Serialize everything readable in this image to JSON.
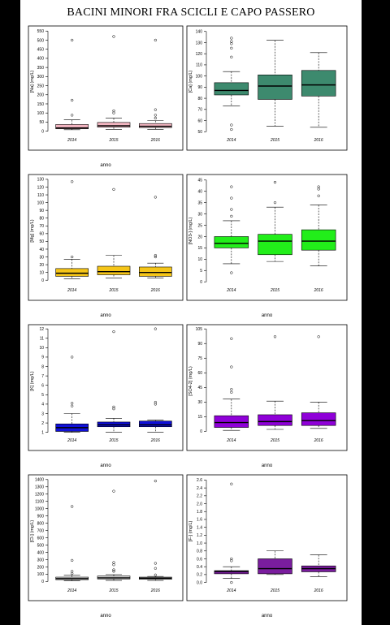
{
  "page": {
    "title": "BACINI MINORI FRA SCICLI E CAPO PASSERO"
  },
  "chart_data": [
    {
      "type": "box",
      "ylabel": "[Na] (mg/L)",
      "xlabel": "anno",
      "categories": [
        "2014",
        "2015",
        "2016"
      ],
      "yticks": [
        0,
        50,
        100,
        150,
        200,
        250,
        300,
        350,
        400,
        450,
        500,
        550
      ],
      "ylim": [
        -15,
        560
      ],
      "color": "#f4b6c2",
      "boxes": [
        {
          "lo": 8,
          "q1": 13,
          "med": 18,
          "q3": 37,
          "hi": 62,
          "out": [
            88,
            170,
            500
          ]
        },
        {
          "lo": 10,
          "q1": 22,
          "med": 30,
          "q3": 48,
          "hi": 72,
          "out": [
            100,
            112,
            520
          ]
        },
        {
          "lo": 10,
          "q1": 20,
          "med": 27,
          "q3": 42,
          "hi": 58,
          "out": [
            72,
            88,
            118,
            500
          ]
        }
      ]
    },
    {
      "type": "box",
      "ylabel": "[Ca] (mg/L)",
      "xlabel": "",
      "categories": [
        "2014",
        "2015",
        "2016"
      ],
      "yticks": [
        50,
        60,
        70,
        80,
        90,
        100,
        110,
        120,
        130,
        140
      ],
      "ylim": [
        48,
        142
      ],
      "color": "#3d8a6e",
      "boxes": [
        {
          "lo": 73,
          "q1": 83,
          "med": 87,
          "q3": 94,
          "hi": 104,
          "out": [
            52,
            56,
            117,
            125,
            129,
            131,
            134
          ]
        },
        {
          "lo": 55,
          "q1": 79,
          "med": 91,
          "q3": 101,
          "hi": 132,
          "out": []
        },
        {
          "lo": 54,
          "q1": 82,
          "med": 92,
          "q3": 105,
          "hi": 121,
          "out": []
        }
      ]
    },
    {
      "type": "box",
      "ylabel": "[Mg] (mg/L)",
      "xlabel": "anno",
      "categories": [
        "2014",
        "2015",
        "2016"
      ],
      "yticks": [
        0,
        10,
        20,
        30,
        40,
        50,
        60,
        70,
        80,
        90,
        100,
        110,
        120,
        130
      ],
      "ylim": [
        -5,
        132
      ],
      "color": "#f5c518",
      "boxes": [
        {
          "lo": 2,
          "q1": 5,
          "med": 9,
          "q3": 15,
          "hi": 27,
          "out": [
            30,
            127
          ]
        },
        {
          "lo": 3,
          "q1": 7,
          "med": 11,
          "q3": 18,
          "hi": 32,
          "out": [
            117
          ]
        },
        {
          "lo": 3,
          "q1": 5,
          "med": 10,
          "q3": 17,
          "hi": 22,
          "out": [
            30,
            32,
            107
          ]
        }
      ]
    },
    {
      "type": "box",
      "ylabel": "[NO3-] (mg/L)",
      "xlabel": "anno",
      "categories": [
        "2014",
        "2015",
        "2016"
      ],
      "yticks": [
        0,
        5,
        10,
        15,
        20,
        25,
        30,
        35,
        40,
        45
      ],
      "ylim": [
        -1,
        46
      ],
      "color": "#22ee1a",
      "boxes": [
        {
          "lo": 8,
          "q1": 15,
          "med": 17,
          "q3": 20,
          "hi": 27,
          "out": [
            4,
            29,
            32,
            37,
            42
          ]
        },
        {
          "lo": 9,
          "q1": 12,
          "med": 18,
          "q3": 21,
          "hi": 33,
          "out": [
            35,
            44
          ]
        },
        {
          "lo": 7,
          "q1": 14,
          "med": 18,
          "q3": 23,
          "hi": 34,
          "out": [
            38,
            41,
            42
          ]
        }
      ]
    },
    {
      "type": "box",
      "ylabel": "[K] (mg/L)",
      "xlabel": "anno",
      "categories": [
        "2014",
        "2015",
        "2016"
      ],
      "yticks": [
        1.0,
        2.0,
        3.0,
        4.0,
        5.0,
        6.0,
        7.0,
        8.0,
        9.0,
        10.0,
        11.0,
        12.0
      ],
      "ylim": [
        0.8,
        12.1
      ],
      "color": "#1010d8",
      "boxes": [
        {
          "lo": 1.0,
          "q1": 1.1,
          "med": 1.5,
          "q3": 1.9,
          "hi": 3.0,
          "out": [
            3.8,
            4.1,
            9.0
          ]
        },
        {
          "lo": 1.0,
          "q1": 1.6,
          "med": 1.8,
          "q3": 2.1,
          "hi": 2.5,
          "out": [
            3.5,
            3.7,
            11.7
          ]
        },
        {
          "lo": 1.0,
          "q1": 1.6,
          "med": 1.8,
          "q3": 2.2,
          "hi": 2.3,
          "out": [
            4.0,
            4.2,
            12.0
          ]
        }
      ]
    },
    {
      "type": "box",
      "ylabel": "[SO4-2] (mg/L)",
      "xlabel": "anno",
      "categories": [
        "2014",
        "2015",
        "2016"
      ],
      "yticks": [
        0,
        15,
        30,
        45,
        60,
        75,
        90,
        105
      ],
      "ylim": [
        -3,
        106
      ],
      "color": "#8f00d8",
      "boxes": [
        {
          "lo": 1,
          "q1": 4,
          "med": 9,
          "q3": 16,
          "hi": 33,
          "out": [
            40,
            43,
            66,
            95
          ]
        },
        {
          "lo": 2,
          "q1": 6,
          "med": 10,
          "q3": 17,
          "hi": 31,
          "out": [
            97
          ]
        },
        {
          "lo": 3,
          "q1": 6,
          "med": 11,
          "q3": 19,
          "hi": 30,
          "out": [
            97
          ]
        }
      ]
    },
    {
      "type": "box",
      "ylabel": "[Cl-] (mg/L)",
      "xlabel": "anno",
      "categories": [
        "2014",
        "2015",
        "2016"
      ],
      "yticks": [
        0,
        100,
        200,
        300,
        400,
        500,
        600,
        700,
        800,
        900,
        1000,
        1100,
        1200,
        1300,
        1400
      ],
      "ylim": [
        -40,
        1420
      ],
      "color": "#d6d6d6",
      "boxes": [
        {
          "lo": 10,
          "q1": 25,
          "med": 40,
          "q3": 60,
          "hi": 85,
          "out": [
            110,
            140,
            290,
            1030
          ]
        },
        {
          "lo": 15,
          "q1": 35,
          "med": 50,
          "q3": 75,
          "hi": 95,
          "out": [
            140,
            160,
            230,
            260,
            1240
          ]
        },
        {
          "lo": 15,
          "q1": 30,
          "med": 45,
          "q3": 60,
          "hi": 70,
          "out": [
            90,
            180,
            250,
            1380
          ]
        }
      ]
    },
    {
      "type": "box",
      "ylabel": "[F-] (mg/L)",
      "xlabel": "anno",
      "categories": [
        "2014",
        "2015",
        "2016"
      ],
      "yticks": [
        0.0,
        0.2,
        0.4,
        0.6,
        0.8,
        1.0,
        1.2,
        1.4,
        1.6,
        1.8,
        2.0,
        2.2,
        2.4,
        2.6
      ],
      "ylim": [
        -0.05,
        2.65
      ],
      "color": "#7a1d9e",
      "boxes": [
        {
          "lo": 0.1,
          "q1": 0.22,
          "med": 0.28,
          "q3": 0.3,
          "hi": 0.4,
          "out": [
            0.0,
            0.55,
            0.6,
            2.5
          ]
        },
        {
          "lo": 0.2,
          "q1": 0.22,
          "med": 0.35,
          "q3": 0.6,
          "hi": 0.8,
          "out": []
        },
        {
          "lo": 0.15,
          "q1": 0.27,
          "med": 0.35,
          "q3": 0.42,
          "hi": 0.7,
          "out": []
        }
      ]
    }
  ]
}
